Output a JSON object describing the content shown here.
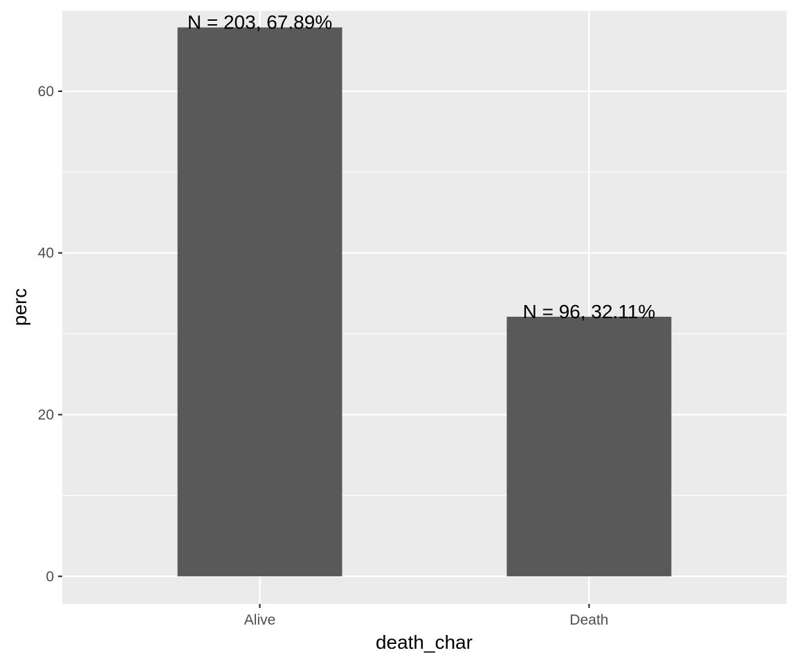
{
  "chart_data": {
    "type": "bar",
    "title": "",
    "xlabel": "death_char",
    "ylabel": "perc",
    "categories": [
      "Alive",
      "Death"
    ],
    "values": [
      67.89,
      32.11
    ],
    "data_labels": [
      "N = 203, 67.89%",
      "N = 96, 32.11%"
    ],
    "ylim": [
      -3.4,
      70
    ],
    "y_ticks": [
      0,
      20,
      40,
      60
    ],
    "y_minor_ticks": [
      10,
      30,
      50,
      70
    ],
    "grid": true,
    "legend": "none",
    "colors": {
      "bar": "#595959",
      "panel": "#ebebeb",
      "grid": "#ffffff"
    }
  }
}
